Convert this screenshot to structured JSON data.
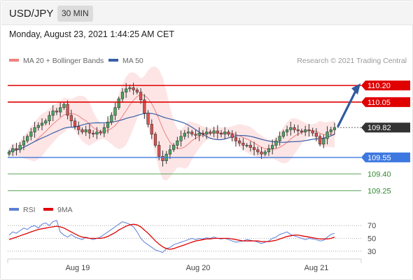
{
  "header": {
    "symbol": "USD/JPY",
    "timeframe": "30 MIN",
    "timestamp": "Monday, August 23, 2021 1:44:25 AM CET"
  },
  "copyright": "Research © 2021 Trading Central",
  "colors": {
    "ma20": "#f08080",
    "bollinger_fill": "#fde0e0",
    "ma50": "#3a5ea8",
    "up_candle": "#4aa860",
    "down_candle": "#e05050",
    "resistance": "#e00000",
    "pivot": "#3d78e0",
    "support": "#2e8b2e",
    "current_price_tag": "#333333",
    "forecast_arrow": "#2f5aa0",
    "rsi": "#5b7fd6",
    "rsi_ma": "#e00000"
  },
  "chart_data": [
    {
      "type": "candlestick",
      "legend": [
        {
          "label": "MA 20 + Bollinger Bands",
          "color": "#f08080"
        },
        {
          "label": "MA 50",
          "color": "#3a5ea8"
        }
      ],
      "x_labels": [
        "Aug 19",
        "Aug 20",
        "Aug 21"
      ],
      "ylim": [
        109.17,
        110.34
      ],
      "current_price": 109.82,
      "levels": [
        {
          "value": 110.2,
          "label": "110.20",
          "kind": "resistance"
        },
        {
          "value": 110.05,
          "label": "110.05",
          "kind": "resistance"
        },
        {
          "value": 109.55,
          "label": "109.55",
          "kind": "pivot"
        },
        {
          "value": 109.4,
          "label": "109.40",
          "kind": "support"
        },
        {
          "value": 109.25,
          "label": "109.25",
          "kind": "support"
        }
      ],
      "forecast": {
        "from": 109.82,
        "to": 110.2
      },
      "close": [
        109.6,
        109.63,
        109.62,
        109.66,
        109.7,
        109.74,
        109.78,
        109.82,
        109.84,
        109.86,
        109.88,
        109.93,
        109.97,
        109.96,
        110.0,
        110.03,
        109.93,
        109.88,
        109.83,
        109.8,
        109.78,
        109.8,
        109.77,
        109.76,
        109.78,
        109.77,
        109.82,
        109.87,
        109.93,
        110.0,
        110.08,
        110.14,
        110.17,
        110.18,
        110.16,
        110.14,
        110.07,
        109.95,
        109.85,
        109.76,
        109.66,
        109.56,
        109.52,
        109.58,
        109.62,
        109.66,
        109.7,
        109.74,
        109.77,
        109.78,
        109.76,
        109.75,
        109.77,
        109.76,
        109.78,
        109.77,
        109.79,
        109.77,
        109.76,
        109.78,
        109.76,
        109.73,
        109.7,
        109.68,
        109.66,
        109.66,
        109.64,
        109.62,
        109.6,
        109.58,
        109.6,
        109.63,
        109.66,
        109.7,
        109.74,
        109.78,
        109.8,
        109.82,
        109.8,
        109.79,
        109.78,
        109.8,
        109.79,
        109.77,
        109.74,
        109.67,
        109.72,
        109.78,
        109.8,
        109.82
      ],
      "rsi": {
        "legend": [
          {
            "label": "RSI",
            "color": "#5b7fd6"
          },
          {
            "label": "9MA",
            "color": "#e00000"
          }
        ],
        "ylim": [
          20,
          80
        ],
        "ticks": [
          70,
          50,
          30
        ],
        "values": [
          55,
          60,
          58,
          62,
          66,
          64,
          68,
          70,
          66,
          72,
          74,
          70,
          76,
          78,
          60,
          55,
          52,
          56,
          52,
          50,
          48,
          52,
          50,
          48,
          50,
          52,
          56,
          60,
          64,
          68,
          72,
          76,
          74,
          72,
          68,
          60,
          50,
          44,
          40,
          36,
          32,
          30,
          28,
          34,
          36,
          40,
          42,
          44,
          46,
          48,
          50,
          48,
          50,
          49,
          51,
          50,
          52,
          50,
          49,
          50,
          48,
          46,
          44,
          45,
          46,
          48,
          47,
          46,
          44,
          42,
          44,
          46,
          50,
          52,
          56,
          58,
          60,
          56,
          54,
          52,
          50,
          48,
          50,
          49,
          48,
          46,
          47,
          52,
          56,
          58
        ],
        "ma": [
          48,
          50,
          52,
          54,
          56,
          58,
          60,
          62,
          64,
          65,
          66,
          67,
          68,
          69,
          68,
          66,
          63,
          60,
          57,
          54,
          52,
          51,
          50,
          50,
          50,
          50,
          51,
          53,
          56,
          59,
          63,
          66,
          69,
          71,
          72,
          71,
          68,
          63,
          58,
          52,
          46,
          41,
          37,
          34,
          33,
          34,
          36,
          38,
          40,
          42,
          44,
          46,
          47,
          48,
          49,
          49,
          50,
          50,
          50,
          50,
          50,
          49,
          48,
          47,
          46,
          46,
          46,
          46,
          46,
          45,
          45,
          45,
          46,
          47,
          49,
          51,
          53,
          54,
          55,
          55,
          54,
          53,
          52,
          51,
          50,
          49,
          49,
          49,
          50,
          52
        ]
      }
    }
  ]
}
